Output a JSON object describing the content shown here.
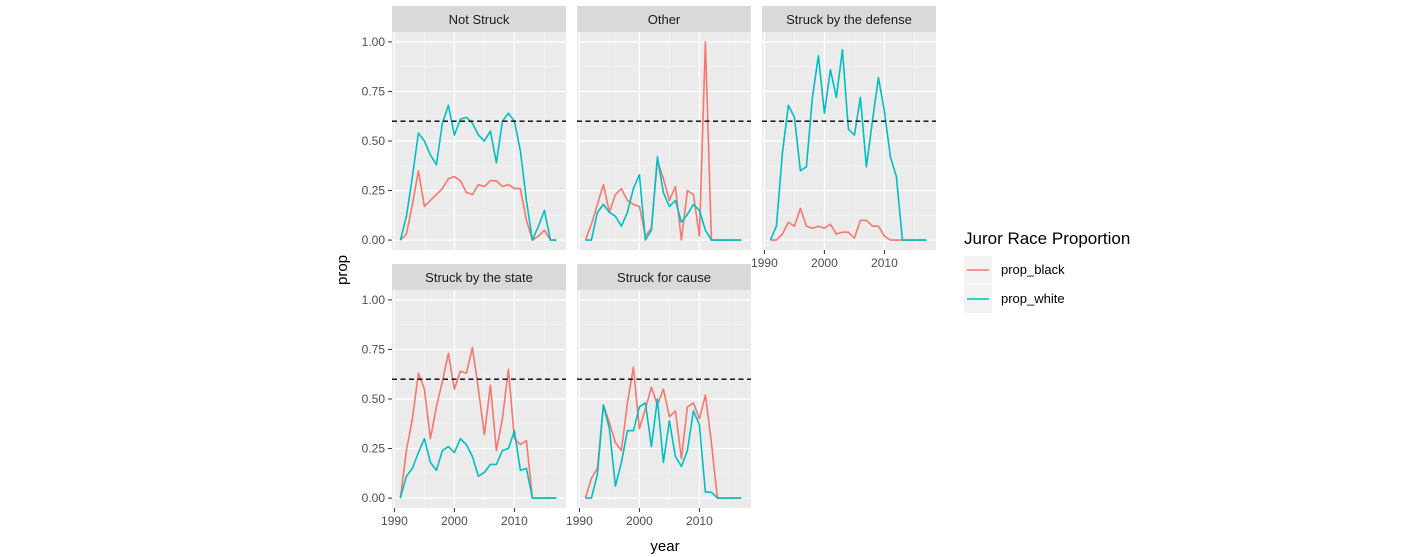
{
  "chart_data": {
    "type": "line",
    "facet_layout": "facet_wrap, 3 columns",
    "xlabel": "year",
    "ylabel": "prop",
    "x_ticks": [
      1990,
      2000,
      2010
    ],
    "y_ticks": [
      "0.00",
      "0.25",
      "0.50",
      "0.75",
      "1.00"
    ],
    "xlim": [
      1989.6,
      2018.6
    ],
    "ylim": [
      -0.05,
      1.05
    ],
    "reference_line": {
      "y": 0.6,
      "style": "dashed",
      "color": "#000000"
    },
    "legend": {
      "title": "Juror Race Proportion",
      "placement": "right",
      "entries": [
        {
          "label": "prop_black",
          "color": "#F8766D"
        },
        {
          "label": "prop_white",
          "color": "#00BFC4"
        }
      ]
    },
    "panels": [
      {
        "strip": "Not Struck",
        "show_x_axis": false,
        "show_y_axis": true,
        "series": [
          {
            "name": "prop_black",
            "color": "#F8766D",
            "x": [
              1991,
              1992,
              1993,
              1994,
              1995,
              1996,
              1997,
              1998,
              1999,
              2000,
              2001,
              2002,
              2003,
              2004,
              2005,
              2006,
              2007,
              2008,
              2009,
              2010,
              2011,
              2012,
              2013,
              2014,
              2015,
              2016,
              2017
            ],
            "y": [
              0.0,
              0.03,
              0.18,
              0.35,
              0.17,
              0.2,
              0.23,
              0.26,
              0.31,
              0.32,
              0.3,
              0.24,
              0.23,
              0.28,
              0.27,
              0.3,
              0.3,
              0.27,
              0.28,
              0.26,
              0.26,
              0.1,
              0.0,
              0.02,
              0.05,
              0.0,
              0.0
            ]
          },
          {
            "name": "prop_white",
            "color": "#00BFC4",
            "x": [
              1991,
              1992,
              1993,
              1994,
              1995,
              1996,
              1997,
              1998,
              1999,
              2000,
              2001,
              2002,
              2003,
              2004,
              2005,
              2006,
              2007,
              2008,
              2009,
              2010,
              2011,
              2012,
              2013,
              2014,
              2015,
              2016,
              2017
            ],
            "y": [
              0.0,
              0.12,
              0.32,
              0.54,
              0.5,
              0.43,
              0.38,
              0.59,
              0.68,
              0.53,
              0.61,
              0.62,
              0.59,
              0.53,
              0.5,
              0.55,
              0.39,
              0.6,
              0.64,
              0.6,
              0.45,
              0.2,
              0.0,
              0.07,
              0.15,
              0.0,
              0.0
            ]
          }
        ]
      },
      {
        "strip": "Other",
        "show_x_axis": false,
        "show_y_axis": false,
        "series": [
          {
            "name": "prop_black",
            "color": "#F8766D",
            "x": [
              1991,
              1992,
              1993,
              1994,
              1995,
              1996,
              1997,
              1998,
              1999,
              2000,
              2001,
              2002,
              2003,
              2004,
              2005,
              2006,
              2007,
              2008,
              2009,
              2010,
              2011,
              2012,
              2013,
              2014,
              2015,
              2016,
              2017
            ],
            "y": [
              0.0,
              0.08,
              0.18,
              0.28,
              0.14,
              0.23,
              0.26,
              0.2,
              0.18,
              0.17,
              0.02,
              0.06,
              0.4,
              0.31,
              0.2,
              0.27,
              0.0,
              0.25,
              0.23,
              0.02,
              1.0,
              0.0,
              0.0,
              0.0,
              0.0,
              0.0,
              0.0
            ]
          },
          {
            "name": "prop_white",
            "color": "#00BFC4",
            "x": [
              1991,
              1992,
              1993,
              1994,
              1995,
              1996,
              1997,
              1998,
              1999,
              2000,
              2001,
              2002,
              2003,
              2004,
              2005,
              2006,
              2007,
              2008,
              2009,
              2010,
              2011,
              2012,
              2013,
              2014,
              2015,
              2016,
              2017
            ],
            "y": [
              0.0,
              0.0,
              0.14,
              0.18,
              0.14,
              0.12,
              0.07,
              0.14,
              0.26,
              0.33,
              0.0,
              0.05,
              0.42,
              0.24,
              0.17,
              0.2,
              0.09,
              0.13,
              0.18,
              0.15,
              0.05,
              0.0,
              0.0,
              0.0,
              0.0,
              0.0,
              0.0
            ]
          }
        ]
      },
      {
        "strip": "Struck by the defense",
        "show_x_axis": true,
        "show_y_axis": false,
        "series": [
          {
            "name": "prop_black",
            "color": "#F8766D",
            "x": [
              1991,
              1992,
              1993,
              1994,
              1995,
              1996,
              1997,
              1998,
              1999,
              2000,
              2001,
              2002,
              2003,
              2004,
              2005,
              2006,
              2007,
              2008,
              2009,
              2010,
              2011,
              2012,
              2013,
              2014,
              2015,
              2016,
              2017
            ],
            "y": [
              0.0,
              0.0,
              0.03,
              0.09,
              0.07,
              0.16,
              0.07,
              0.06,
              0.07,
              0.06,
              0.08,
              0.03,
              0.04,
              0.04,
              0.01,
              0.1,
              0.1,
              0.07,
              0.07,
              0.02,
              0.0,
              0.0,
              0.0,
              0.0,
              0.0,
              0.0,
              0.0
            ]
          },
          {
            "name": "prop_white",
            "color": "#00BFC4",
            "x": [
              1991,
              1992,
              1993,
              1994,
              1995,
              1996,
              1997,
              1998,
              1999,
              2000,
              2001,
              2002,
              2003,
              2004,
              2005,
              2006,
              2007,
              2008,
              2009,
              2010,
              2011,
              2012,
              2013,
              2014,
              2015,
              2016,
              2017
            ],
            "y": [
              0.0,
              0.07,
              0.44,
              0.68,
              0.62,
              0.35,
              0.37,
              0.72,
              0.93,
              0.64,
              0.86,
              0.72,
              0.96,
              0.56,
              0.53,
              0.72,
              0.37,
              0.6,
              0.82,
              0.65,
              0.42,
              0.32,
              0.0,
              0.0,
              0.0,
              0.0,
              0.0
            ]
          }
        ]
      },
      {
        "strip": "Struck by the state",
        "show_x_axis": true,
        "show_y_axis": true,
        "series": [
          {
            "name": "prop_black",
            "color": "#F8766D",
            "x": [
              1991,
              1992,
              1993,
              1994,
              1995,
              1996,
              1997,
              1998,
              1999,
              2000,
              2001,
              2002,
              2003,
              2004,
              2005,
              2006,
              2007,
              2008,
              2009,
              2010,
              2011,
              2012,
              2013,
              2014,
              2015,
              2016,
              2017
            ],
            "y": [
              0.0,
              0.24,
              0.4,
              0.63,
              0.55,
              0.3,
              0.46,
              0.59,
              0.73,
              0.55,
              0.64,
              0.63,
              0.76,
              0.55,
              0.32,
              0.57,
              0.24,
              0.4,
              0.65,
              0.3,
              0.27,
              0.29,
              0.0,
              0.0,
              0.0,
              0.0,
              0.0
            ]
          },
          {
            "name": "prop_white",
            "color": "#00BFC4",
            "x": [
              1991,
              1992,
              1993,
              1994,
              1995,
              1996,
              1997,
              1998,
              1999,
              2000,
              2001,
              2002,
              2003,
              2004,
              2005,
              2006,
              2007,
              2008,
              2009,
              2010,
              2011,
              2012,
              2013,
              2014,
              2015,
              2016,
              2017
            ],
            "y": [
              0.0,
              0.11,
              0.15,
              0.23,
              0.3,
              0.18,
              0.14,
              0.24,
              0.26,
              0.23,
              0.3,
              0.27,
              0.21,
              0.11,
              0.13,
              0.17,
              0.17,
              0.24,
              0.25,
              0.34,
              0.14,
              0.15,
              0.0,
              0.0,
              0.0,
              0.0,
              0.0
            ]
          }
        ]
      },
      {
        "strip": "Struck for cause",
        "show_x_axis": true,
        "show_y_axis": false,
        "series": [
          {
            "name": "prop_black",
            "color": "#F8766D",
            "x": [
              1991,
              1992,
              1993,
              1994,
              1995,
              1996,
              1997,
              1998,
              1999,
              2000,
              2001,
              2002,
              2003,
              2004,
              2005,
              2006,
              2007,
              2008,
              2009,
              2010,
              2011,
              2012,
              2013,
              2014,
              2015,
              2016,
              2017
            ],
            "y": [
              0.0,
              0.1,
              0.15,
              0.47,
              0.38,
              0.28,
              0.24,
              0.48,
              0.66,
              0.35,
              0.45,
              0.56,
              0.47,
              0.55,
              0.41,
              0.44,
              0.2,
              0.46,
              0.48,
              0.4,
              0.52,
              0.28,
              0.0,
              0.0,
              0.0,
              0.0,
              0.0
            ]
          },
          {
            "name": "prop_white",
            "color": "#00BFC4",
            "x": [
              1991,
              1992,
              1993,
              1994,
              1995,
              1996,
              1997,
              1998,
              1999,
              2000,
              2001,
              2002,
              2003,
              2004,
              2005,
              2006,
              2007,
              2008,
              2009,
              2010,
              2011,
              2012,
              2013,
              2014,
              2015,
              2016,
              2017
            ],
            "y": [
              0.0,
              0.0,
              0.12,
              0.47,
              0.35,
              0.06,
              0.18,
              0.34,
              0.34,
              0.46,
              0.48,
              0.26,
              0.5,
              0.18,
              0.39,
              0.21,
              0.16,
              0.24,
              0.44,
              0.37,
              0.03,
              0.03,
              0.0,
              0.0,
              0.0,
              0.0,
              0.0
            ]
          }
        ]
      }
    ]
  }
}
